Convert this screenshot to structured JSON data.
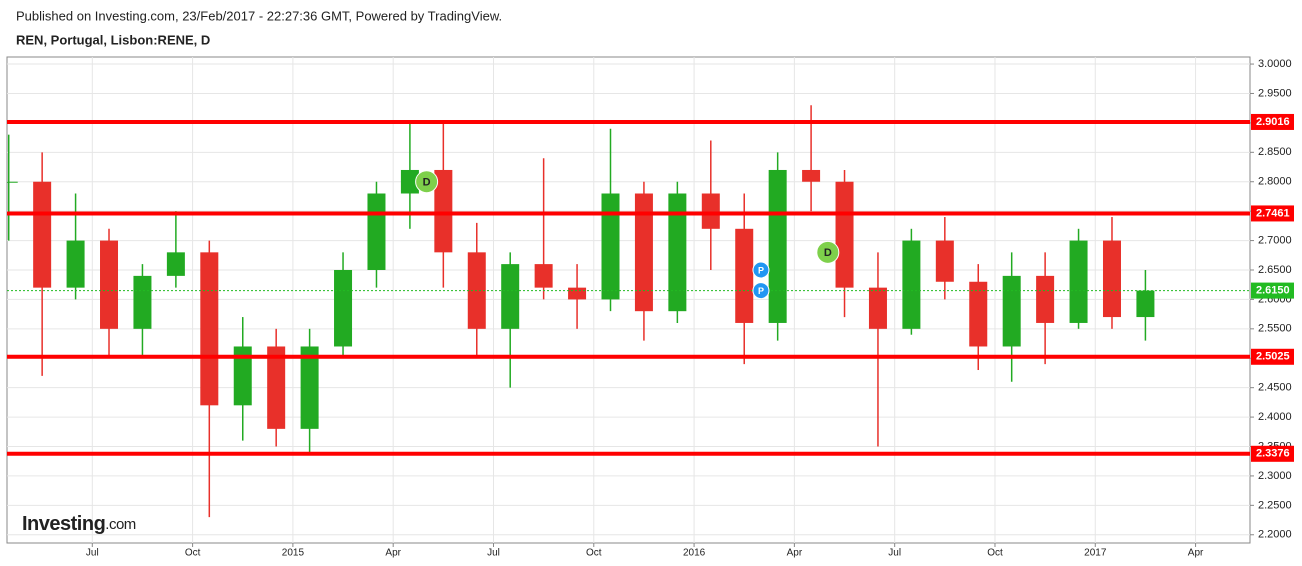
{
  "chart_data": {
    "type": "candlestick",
    "subtitle": "Published on Investing.com, 23/Feb/2017 - 22:27:36 GMT, Powered by TradingView.",
    "title": "REN, Portugal, Lisbon:RENE, D",
    "brand": "Investing",
    "brand_suffix": ".com",
    "x": [
      "2014-04",
      "2014-05",
      "2014-06",
      "2014-07",
      "2014-08",
      "2014-09",
      "2014-10",
      "2014-11",
      "2014-12",
      "2015-01",
      "2015-02",
      "2015-03",
      "2015-04",
      "2015-05",
      "2015-06",
      "2015-07",
      "2015-08",
      "2015-09",
      "2015-10",
      "2015-11",
      "2015-12",
      "2016-01",
      "2016-02",
      "2016-03",
      "2016-04",
      "2016-05",
      "2016-06",
      "2016-07",
      "2016-08",
      "2016-09",
      "2016-10",
      "2016-11",
      "2016-12",
      "2017-01",
      "2017-02"
    ],
    "open": [
      2.8,
      2.8,
      2.62,
      2.7,
      2.55,
      2.64,
      2.68,
      2.42,
      2.52,
      2.38,
      2.52,
      2.65,
      2.78,
      2.82,
      2.68,
      2.55,
      2.66,
      2.62,
      2.6,
      2.78,
      2.58,
      2.78,
      2.72,
      2.56,
      2.82,
      2.8,
      2.62,
      2.55,
      2.7,
      2.63,
      2.52,
      2.64,
      2.56,
      2.7,
      2.57
    ],
    "high": [
      2.88,
      2.85,
      2.78,
      2.72,
      2.66,
      2.75,
      2.7,
      2.57,
      2.55,
      2.55,
      2.68,
      2.8,
      2.9,
      2.9,
      2.73,
      2.68,
      2.84,
      2.66,
      2.89,
      2.8,
      2.8,
      2.87,
      2.78,
      2.85,
      2.93,
      2.82,
      2.68,
      2.72,
      2.74,
      2.66,
      2.68,
      2.68,
      2.72,
      2.74,
      2.65
    ],
    "low": [
      2.7,
      2.47,
      2.6,
      2.5,
      2.5,
      2.62,
      2.23,
      2.36,
      2.35,
      2.34,
      2.5,
      2.62,
      2.72,
      2.62,
      2.5,
      2.45,
      2.6,
      2.55,
      2.58,
      2.53,
      2.56,
      2.65,
      2.49,
      2.53,
      2.75,
      2.57,
      2.35,
      2.54,
      2.6,
      2.48,
      2.46,
      2.49,
      2.55,
      2.55,
      2.53
    ],
    "close": [
      2.8,
      2.62,
      2.7,
      2.55,
      2.64,
      2.68,
      2.42,
      2.52,
      2.38,
      2.52,
      2.65,
      2.78,
      2.82,
      2.68,
      2.55,
      2.66,
      2.62,
      2.6,
      2.78,
      2.58,
      2.78,
      2.72,
      2.56,
      2.82,
      2.8,
      2.62,
      2.55,
      2.7,
      2.63,
      2.52,
      2.64,
      2.56,
      2.7,
      2.57,
      2.615
    ],
    "up_color": "#22aa22",
    "down_color": "#e8302a",
    "xlim": [
      "2014-04",
      "2017-05"
    ],
    "xticks": [
      {
        "value": "2014-07",
        "label": "Jul"
      },
      {
        "value": "2014-10",
        "label": "Oct"
      },
      {
        "value": "2015-01",
        "label": "2015"
      },
      {
        "value": "2015-04",
        "label": "Apr"
      },
      {
        "value": "2015-07",
        "label": "Jul"
      },
      {
        "value": "2015-10",
        "label": "Oct"
      },
      {
        "value": "2016-01",
        "label": "2016"
      },
      {
        "value": "2016-04",
        "label": "Apr"
      },
      {
        "value": "2016-07",
        "label": "Jul"
      },
      {
        "value": "2016-10",
        "label": "Oct"
      },
      {
        "value": "2017-01",
        "label": "2017"
      },
      {
        "value": "2017-04",
        "label": "Apr"
      }
    ],
    "ylim": [
      2.186,
      3.012
    ],
    "yticks": [
      {
        "value": 2.2,
        "label": "2.2000"
      },
      {
        "value": 2.25,
        "label": "2.2500"
      },
      {
        "value": 2.3,
        "label": "2.3000"
      },
      {
        "value": 2.35,
        "label": "2.3500"
      },
      {
        "value": 2.4,
        "label": "2.4000"
      },
      {
        "value": 2.45,
        "label": "2.4500"
      },
      {
        "value": 2.5,
        "label": "2.5000"
      },
      {
        "value": 2.55,
        "label": "2.5500"
      },
      {
        "value": 2.6,
        "label": "2.6000"
      },
      {
        "value": 2.65,
        "label": "2.6500"
      },
      {
        "value": 2.7,
        "label": "2.7000"
      },
      {
        "value": 2.75,
        "label": "2.7500"
      },
      {
        "value": 2.8,
        "label": "2.8000"
      },
      {
        "value": 2.85,
        "label": "2.8500"
      },
      {
        "value": 2.9,
        "label": "2.9000"
      },
      {
        "value": 2.95,
        "label": "2.9500"
      },
      {
        "value": 3.0,
        "label": "3.0000"
      }
    ],
    "grid": true,
    "levels": [
      2.9016,
      2.7461,
      2.5025,
      2.3376
    ],
    "level_color": "#ff0000",
    "last_price": {
      "value": 2.615,
      "label": "2.6150"
    },
    "last_price_color": "#22bb22",
    "annotations": [
      {
        "label": "D",
        "x": "2015-05",
        "y": 2.8,
        "color": "#7ed04b"
      },
      {
        "label": "P",
        "x": "2016-03",
        "y": 2.65,
        "color": "#2196f3"
      },
      {
        "label": "P",
        "x": "2016-03",
        "y": 2.615,
        "color": "#2196f3"
      },
      {
        "label": "D",
        "x": "2016-05",
        "y": 2.68,
        "color": "#7ed04b"
      }
    ]
  }
}
